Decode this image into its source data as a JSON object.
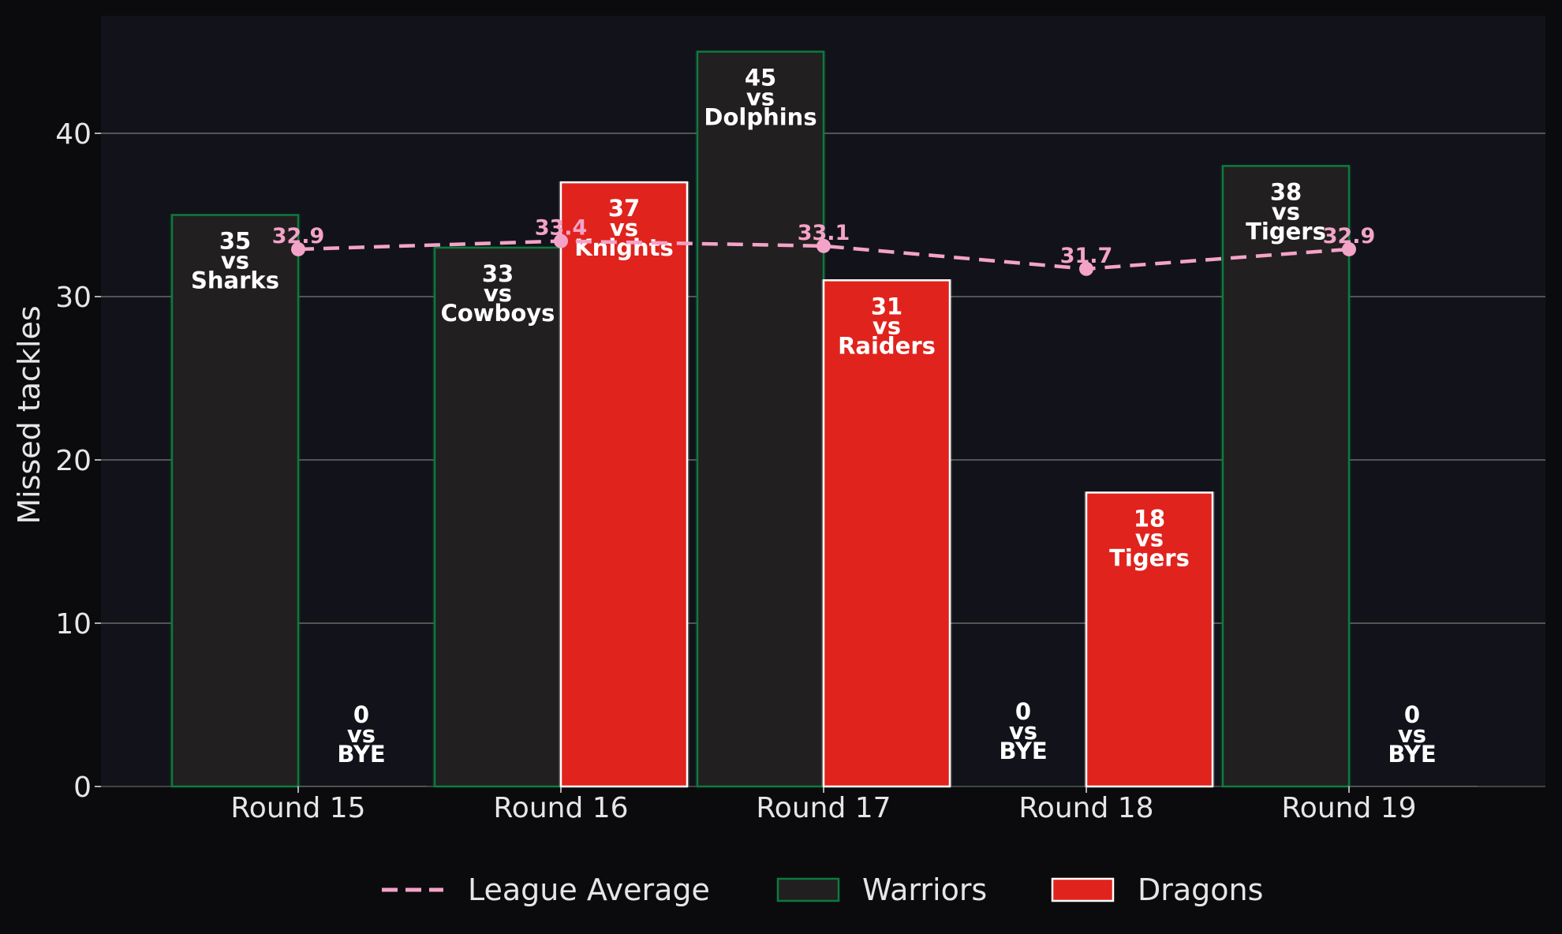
{
  "chart_data": {
    "type": "bar",
    "categories": [
      "Round 15",
      "Round 16",
      "Round 17",
      "Round 18",
      "Round 19"
    ],
    "ylabel": "Missed tackles",
    "xlabel": "",
    "ylim": [
      0,
      47
    ],
    "yticks": [
      0,
      10,
      20,
      30,
      40
    ],
    "grid": "horizontal",
    "legend_position": "bottom-center",
    "series": [
      {
        "name": "Warriors",
        "color": "#221f20",
        "edge_color": "#0d7a3e",
        "values": [
          35,
          33,
          45,
          0,
          38
        ],
        "opponents": [
          "Sharks",
          "Cowboys",
          "Dolphins",
          "BYE",
          "Tigers"
        ]
      },
      {
        "name": "Dragons",
        "color": "#e0231d",
        "edge_color": "#ffffff",
        "values": [
          0,
          37,
          31,
          18,
          0
        ],
        "opponents": [
          "BYE",
          "Knights",
          "Raiders",
          "Tigers",
          "BYE"
        ]
      }
    ],
    "average": {
      "name": "League Average",
      "color": "#f4a3c8",
      "style": "dashed",
      "values": [
        32.9,
        33.4,
        33.1,
        31.7,
        32.9
      ]
    },
    "vs_word": "vs",
    "colors": {
      "page_background": "#0b0b0e",
      "plot_background": "#12131a",
      "grid": "#6b6b6b",
      "text": "#e6e6e6"
    }
  }
}
